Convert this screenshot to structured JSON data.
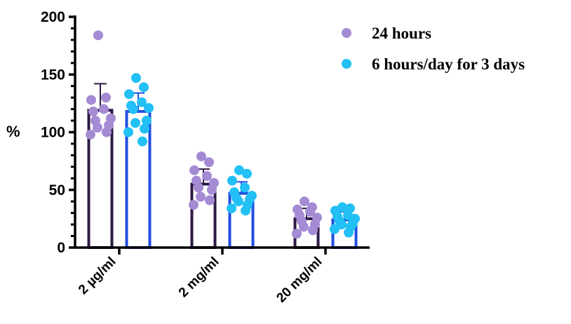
{
  "chart_data": {
    "type": "bar",
    "title": "",
    "xlabel": "",
    "ylabel": "%",
    "ylim": [
      0,
      200
    ],
    "yticks": [
      0,
      50,
      100,
      150,
      200
    ],
    "categories": [
      "2 µg/ml",
      "2 mg/ml",
      "20 mg/ml"
    ],
    "grid": false,
    "legend_position": "top-right",
    "series": [
      {
        "name": "24 hours",
        "point_color": "#a48bd4",
        "bar_color": "#2d1a45",
        "values": [
          119,
          55,
          25
        ],
        "error": [
          23,
          13,
          9
        ],
        "points": [
          [
            184,
            130,
            128,
            120,
            118,
            112,
            110,
            106,
            104,
            100,
            98
          ],
          [
            79,
            74,
            67,
            62,
            58,
            56,
            52,
            50,
            44,
            41,
            37
          ],
          [
            40,
            35,
            33,
            31,
            28,
            26,
            23,
            20,
            18,
            15,
            12
          ]
        ]
      },
      {
        "name": "6 hours/day for 3 days",
        "point_color": "#22c0f5",
        "bar_color": "#1f4fe0",
        "values": [
          118,
          47,
          24
        ],
        "error": [
          16,
          10,
          7
        ],
        "points": [
          [
            147,
            139,
            133,
            126,
            123,
            121,
            120,
            110,
            108,
            103,
            100,
            92
          ],
          [
            67,
            64,
            58,
            52,
            48,
            45,
            43,
            42,
            40,
            37,
            34,
            32
          ],
          [
            35,
            34,
            32,
            28,
            27,
            25,
            23,
            21,
            20,
            18,
            16,
            13
          ]
        ]
      }
    ]
  }
}
